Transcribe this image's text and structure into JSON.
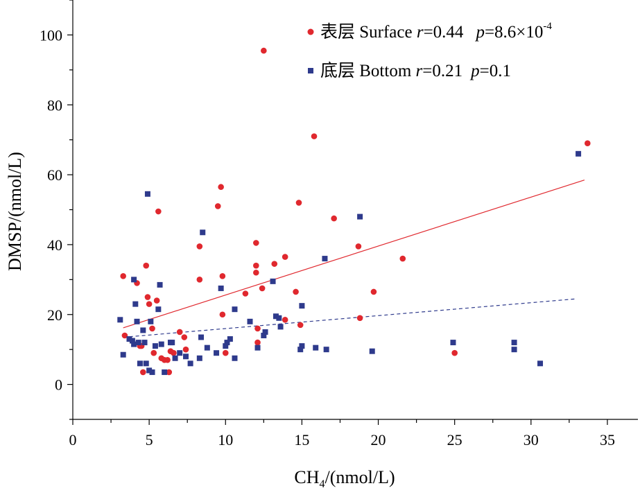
{
  "colors": {
    "surface": "#e0282e",
    "bottom": "#2e3a8c",
    "axis": "#000000"
  },
  "chart_data": {
    "type": "scatter",
    "title": "",
    "xlabel_main": "CH",
    "xlabel_sub": "4",
    "xlabel_rest": "/(nmol/L)",
    "ylabel": "DMSP/(nmol/L)",
    "xlim": [
      0,
      37
    ],
    "ylim": [
      -10,
      110
    ],
    "x_ticks": [
      0,
      5,
      10,
      15,
      20,
      25,
      30,
      35
    ],
    "y_ticks": [
      0,
      20,
      40,
      60,
      80,
      100
    ],
    "grid": false,
    "legend_position": "top-right",
    "series": [
      {
        "name": "表层 Surface",
        "stat_r_label": "r",
        "stat_r_value": "=0.44",
        "stat_p_label": "p",
        "stat_p_value": "=8.6×10",
        "stat_p_exp": "-4",
        "marker": "circle",
        "color": "#e0282e",
        "trend": {
          "style": "solid",
          "x": [
            3.3,
            33.5
          ],
          "y": [
            16.2,
            58.5
          ]
        },
        "points": [
          [
            3.3,
            31
          ],
          [
            3.4,
            14
          ],
          [
            4.2,
            29
          ],
          [
            4.4,
            11
          ],
          [
            4.5,
            11
          ],
          [
            4.6,
            3.5
          ],
          [
            4.8,
            34
          ],
          [
            4.9,
            25
          ],
          [
            5.0,
            23
          ],
          [
            5.2,
            16
          ],
          [
            5.3,
            9
          ],
          [
            5.5,
            24
          ],
          [
            5.6,
            49.5
          ],
          [
            5.8,
            7.5
          ],
          [
            6.0,
            7
          ],
          [
            6.2,
            7
          ],
          [
            6.3,
            3.5
          ],
          [
            6.4,
            9.5
          ],
          [
            6.6,
            9
          ],
          [
            7.0,
            15
          ],
          [
            7.3,
            13.5
          ],
          [
            7.4,
            10
          ],
          [
            8.3,
            39.5
          ],
          [
            8.3,
            30
          ],
          [
            9.5,
            51
          ],
          [
            9.7,
            56.5
          ],
          [
            9.8,
            31
          ],
          [
            9.8,
            20
          ],
          [
            10.0,
            9
          ],
          [
            11.3,
            26
          ],
          [
            12.0,
            40.5
          ],
          [
            12.0,
            34
          ],
          [
            12.0,
            32
          ],
          [
            12.1,
            16
          ],
          [
            12.1,
            12
          ],
          [
            12.4,
            27.5
          ],
          [
            12.5,
            95.5
          ],
          [
            13.2,
            34.5
          ],
          [
            13.9,
            36.5
          ],
          [
            13.9,
            18.5
          ],
          [
            14.6,
            26.5
          ],
          [
            14.8,
            52
          ],
          [
            14.9,
            17
          ],
          [
            15.8,
            71
          ],
          [
            17.1,
            47.5
          ],
          [
            18.7,
            39.5
          ],
          [
            18.8,
            19
          ],
          [
            19.7,
            26.5
          ],
          [
            21.6,
            36
          ],
          [
            25.0,
            9
          ],
          [
            33.7,
            69
          ]
        ]
      },
      {
        "name": "底层 Bottom",
        "stat_r_label": "r",
        "stat_r_value": "=0.21",
        "stat_p_label": "p",
        "stat_p_value": "=0.1",
        "marker": "square",
        "color": "#2e3a8c",
        "trend": {
          "style": "dashed",
          "x": [
            3.3,
            33.0
          ],
          "y": [
            13.5,
            24.5
          ]
        },
        "points": [
          [
            3.1,
            18.5
          ],
          [
            3.3,
            8.5
          ],
          [
            3.7,
            13
          ],
          [
            3.9,
            12.5
          ],
          [
            4.0,
            30
          ],
          [
            4.0,
            11.5
          ],
          [
            4.1,
            23
          ],
          [
            4.2,
            18
          ],
          [
            4.3,
            12
          ],
          [
            4.4,
            6
          ],
          [
            4.6,
            15.5
          ],
          [
            4.7,
            12
          ],
          [
            4.8,
            6
          ],
          [
            4.9,
            54.5
          ],
          [
            5.0,
            4
          ],
          [
            5.1,
            18
          ],
          [
            5.2,
            3.5
          ],
          [
            5.4,
            11
          ],
          [
            5.6,
            21.5
          ],
          [
            5.7,
            28.5
          ],
          [
            5.8,
            11.5
          ],
          [
            6.0,
            3.5
          ],
          [
            6.4,
            12
          ],
          [
            6.5,
            12
          ],
          [
            6.7,
            7.5
          ],
          [
            7.0,
            9
          ],
          [
            7.4,
            8
          ],
          [
            7.7,
            6
          ],
          [
            8.3,
            7.5
          ],
          [
            8.4,
            13.5
          ],
          [
            8.5,
            43.5
          ],
          [
            8.8,
            10.5
          ],
          [
            9.4,
            9
          ],
          [
            9.7,
            27.5
          ],
          [
            10.0,
            11
          ],
          [
            10.1,
            12
          ],
          [
            10.3,
            13
          ],
          [
            10.6,
            21.5
          ],
          [
            10.6,
            7.5
          ],
          [
            11.6,
            18
          ],
          [
            12.1,
            10.5
          ],
          [
            12.5,
            14
          ],
          [
            12.6,
            15
          ],
          [
            13.1,
            29.5
          ],
          [
            13.3,
            19.5
          ],
          [
            13.5,
            19
          ],
          [
            13.6,
            16.5
          ],
          [
            14.9,
            10
          ],
          [
            15.0,
            22.5
          ],
          [
            15.0,
            11
          ],
          [
            15.9,
            10.5
          ],
          [
            16.5,
            36
          ],
          [
            16.6,
            10
          ],
          [
            18.8,
            48
          ],
          [
            19.6,
            9.5
          ],
          [
            24.9,
            12
          ],
          [
            28.9,
            12
          ],
          [
            28.9,
            10
          ],
          [
            30.6,
            6
          ],
          [
            33.1,
            66
          ]
        ]
      }
    ]
  }
}
